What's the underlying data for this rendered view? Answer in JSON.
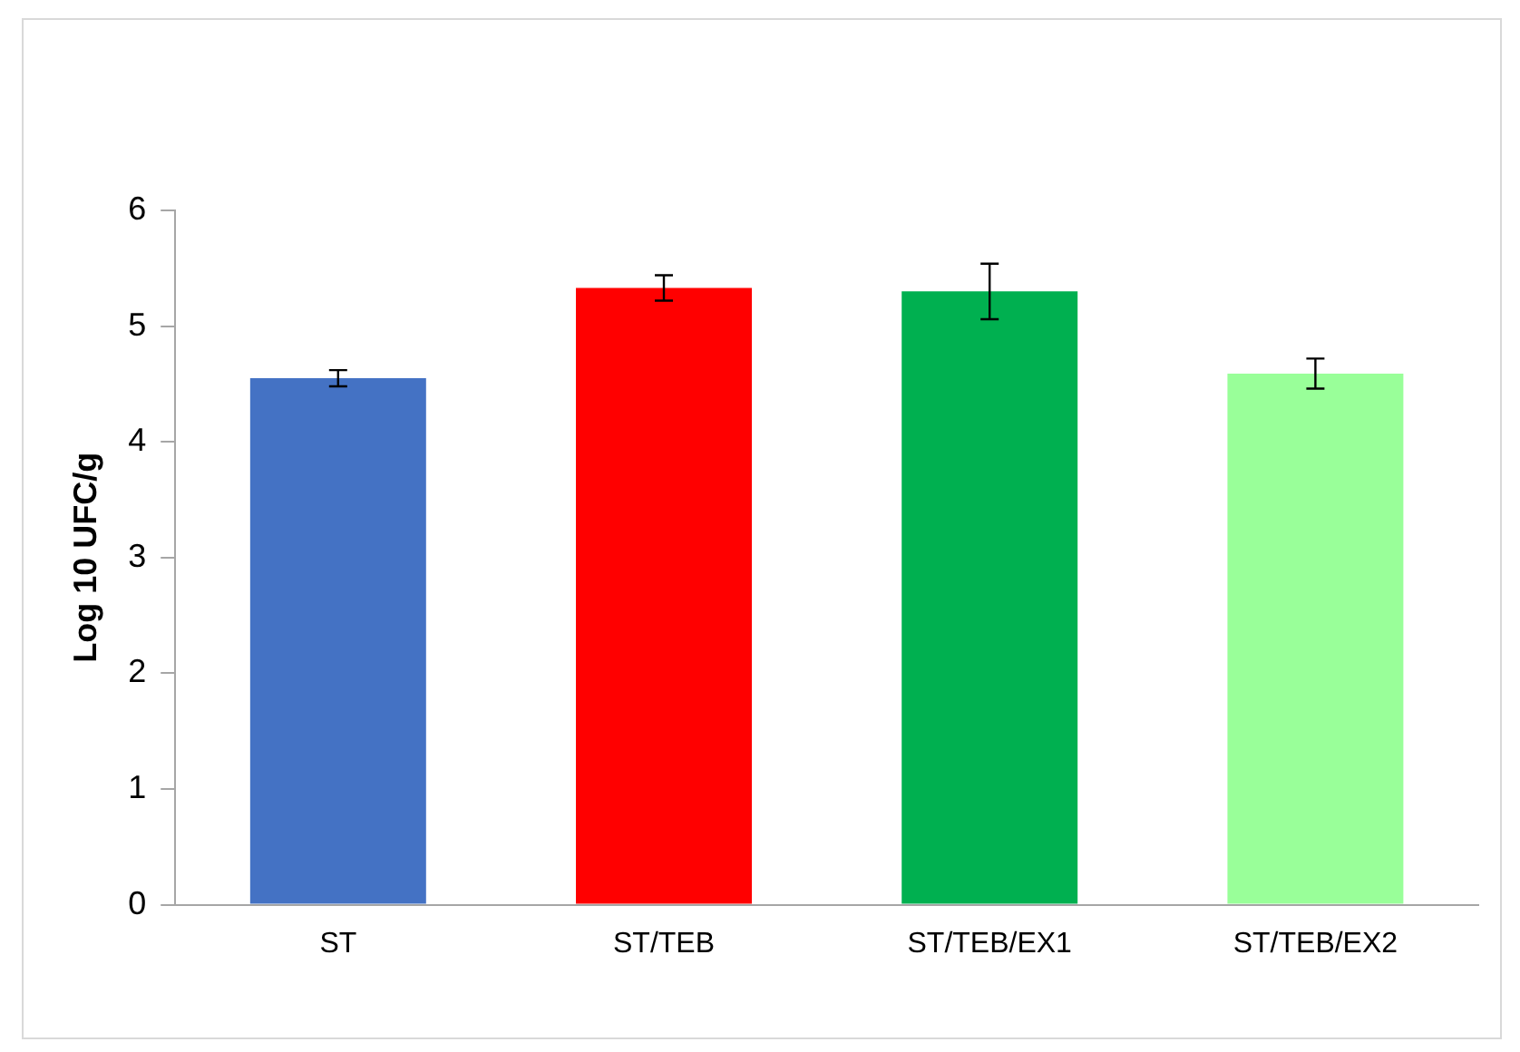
{
  "chart_data": {
    "type": "bar",
    "ylabel": "Log 10 UFC/g",
    "categories": [
      "ST",
      "ST/TEB",
      "ST/TEB/EX1",
      "ST/TEB/EX2"
    ],
    "values": [
      4.55,
      5.33,
      5.3,
      4.59
    ],
    "colors": [
      "#4472c4",
      "#ff0000",
      "#00b050",
      "#99ff99"
    ],
    "errors": [
      0.07,
      0.11,
      0.24,
      0.13
    ],
    "ylim": [
      0,
      6
    ],
    "yticks": [
      0,
      1,
      2,
      3,
      4,
      5,
      6
    ],
    "grid": false,
    "legend": false
  }
}
